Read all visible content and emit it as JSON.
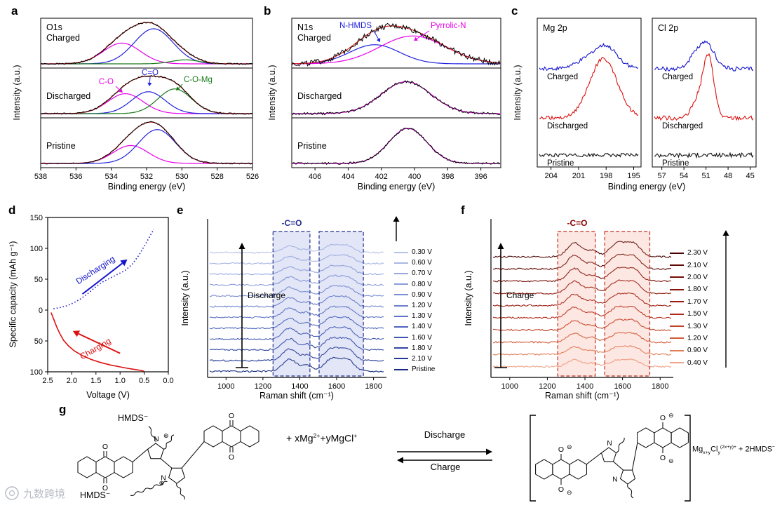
{
  "watermark": {
    "text": "九数跨境"
  },
  "chart_data": {
    "panel_a": {
      "letter": "a",
      "type": "xps-fitted-spectra",
      "core_level": "O1s",
      "xlabel": "Binding energy (eV)",
      "ylabel": "Intensity (a.u.)",
      "x_range": [
        538,
        526
      ],
      "x_ticks": [
        "538",
        "536",
        "534",
        "532",
        "530",
        "528",
        "526"
      ],
      "envelope_color": "#e02020",
      "raw_color": "#000000",
      "component_labels": [
        {
          "text": "C-O",
          "color": "#e800e8"
        },
        {
          "text": "C=O",
          "color": "#2020dd"
        },
        {
          "text": "C-O-Mg",
          "color": "#1a7a1a"
        }
      ],
      "subpanels": [
        {
          "label": "Charged",
          "noise": 0.018,
          "components": [
            {
              "name": "C-O",
              "color": "#e800e8",
              "center": 533.4,
              "width": 1.05,
              "amp": 0.52
            },
            {
              "name": "C=O",
              "color": "#2020dd",
              "center": 531.6,
              "width": 1.1,
              "amp": 0.88
            },
            {
              "name": "C-O-Mg",
              "color": "#1a7a1a",
              "center": 529.8,
              "width": 0.8,
              "amp": 0.1
            }
          ]
        },
        {
          "label": "Discharged",
          "noise": 0.018,
          "components": [
            {
              "name": "C-O",
              "color": "#e800e8",
              "center": 533.2,
              "width": 1.0,
              "amp": 0.5
            },
            {
              "name": "C=O",
              "color": "#2020dd",
              "center": 531.9,
              "width": 0.95,
              "amp": 0.55
            },
            {
              "name": "C-O-Mg",
              "color": "#1a7a1a",
              "center": 530.4,
              "width": 0.95,
              "amp": 0.62
            }
          ]
        },
        {
          "label": "Pristine",
          "noise": 0.016,
          "components": [
            {
              "name": "C-O",
              "color": "#e800e8",
              "center": 532.9,
              "width": 1.0,
              "amp": 0.45
            },
            {
              "name": "C=O",
              "color": "#2020dd",
              "center": 531.4,
              "width": 1.05,
              "amp": 0.85
            }
          ]
        }
      ]
    },
    "panel_b": {
      "letter": "b",
      "type": "xps-fitted-spectra",
      "core_level": "N1s",
      "xlabel": "Binding energy (eV)",
      "ylabel": "Intensity (a.u.)",
      "x_range": [
        407.4,
        394.8
      ],
      "x_ticks": [
        "406",
        "404",
        "402",
        "400",
        "398",
        "396"
      ],
      "envelope_color": "#e02020",
      "annotations": [
        {
          "text": "N-HMDS",
          "color": "#2020dd"
        },
        {
          "text": "Pyrrolic-N",
          "color": "#e800e8"
        }
      ],
      "subpanels": [
        {
          "label": "Charged",
          "noise": 0.07,
          "components": [
            {
              "name": "N-HMDS",
              "color": "#2020dd",
              "center": 402.4,
              "width": 1.5,
              "amp": 0.48
            },
            {
              "name": "Pyrrolic-N",
              "color": "#e800e8",
              "center": 400.1,
              "width": 2.0,
              "amp": 0.7
            }
          ]
        },
        {
          "label": "Discharged",
          "noise": 0.03,
          "components": [
            {
              "name": "Pyrrolic-N",
              "color": "#e800e8",
              "center": 400.5,
              "width": 1.5,
              "amp": 0.8
            }
          ]
        },
        {
          "label": "Pristine",
          "noise": 0.025,
          "components": [
            {
              "name": "Pyrrolic-N",
              "color": "#e800e8",
              "center": 400.4,
              "width": 1.15,
              "amp": 0.88
            }
          ]
        }
      ]
    },
    "panel_c": {
      "letter": "c",
      "type": "xps-stacked-traces",
      "xlabel": "Binding energy (eV)",
      "ylabel": "Intensity (a.u.)",
      "sub_left": {
        "title": "Mg 2p",
        "x_range": [
          205.5,
          194.2
        ],
        "x_ticks": [
          "204",
          "201",
          "198",
          "195"
        ],
        "traces": [
          {
            "label": "Charged",
            "color": "#1515cc",
            "offset": 0.66,
            "noise": 0.012,
            "peaks": [
              {
                "center": 198.9,
                "width": 1.7,
                "amp": 0.1
              },
              {
                "center": 197.8,
                "width": 1.1,
                "amp": 0.07
              }
            ]
          },
          {
            "label": "Discharged",
            "color": "#dd1111",
            "offset": 0.33,
            "noise": 0.012,
            "peaks": [
              {
                "center": 198.3,
                "width": 1.5,
                "amp": 0.4
              }
            ]
          },
          {
            "label": "Pristine",
            "color": "#111111",
            "offset": 0.08,
            "noise": 0.012,
            "peaks": []
          }
        ]
      },
      "sub_right": {
        "title": "Cl 2p",
        "x_range": [
          58.3,
          44.2
        ],
        "x_ticks": [
          "57",
          "54",
          "51",
          "48",
          "45"
        ],
        "traces": [
          {
            "label": "Charged",
            "color": "#1515cc",
            "offset": 0.66,
            "noise": 0.015,
            "peaks": [
              {
                "center": 50.9,
                "width": 1.1,
                "amp": 0.16
              },
              {
                "center": 52.6,
                "width": 0.9,
                "amp": 0.06
              }
            ]
          },
          {
            "label": "Discharged",
            "color": "#dd1111",
            "offset": 0.33,
            "noise": 0.015,
            "peaks": [
              {
                "center": 50.7,
                "width": 0.75,
                "amp": 0.42
              },
              {
                "center": 52.3,
                "width": 0.7,
                "amp": 0.1
              }
            ]
          },
          {
            "label": "Pristine",
            "color": "#111111",
            "offset": 0.08,
            "noise": 0.015,
            "peaks": []
          }
        ]
      }
    },
    "panel_d": {
      "letter": "d",
      "type": "line",
      "xlabel": "Voltage (V)",
      "ylabel": "Specific capacity (mAh g⁻¹)",
      "x_range": [
        2.5,
        0.0
      ],
      "y_range": [
        -100,
        150
      ],
      "x_ticks": [
        "2.5",
        "2.0",
        "1.5",
        "1.0",
        "0.5",
        "0.0"
      ],
      "y_ticks": [
        "150",
        "100",
        "50",
        "0",
        "50",
        "100"
      ],
      "y_tick_values": [
        150,
        100,
        50,
        0,
        -50,
        -100
      ],
      "series": [
        {
          "name": "Discharging",
          "color": "#1515cc",
          "style": "dotted",
          "points": [
            [
              2.38,
              2
            ],
            [
              2.25,
              4
            ],
            [
              2.1,
              7
            ],
            [
              1.95,
              12
            ],
            [
              1.8,
              19
            ],
            [
              1.65,
              28
            ],
            [
              1.5,
              38
            ],
            [
              1.35,
              46
            ],
            [
              1.2,
              52
            ],
            [
              1.05,
              58
            ],
            [
              0.9,
              64
            ],
            [
              0.75,
              74
            ],
            [
              0.6,
              90
            ],
            [
              0.48,
              106
            ],
            [
              0.38,
              120
            ],
            [
              0.3,
              131
            ]
          ]
        },
        {
          "name": "Charging",
          "color": "#dd1111",
          "style": "solid",
          "points": [
            [
              2.43,
              -4
            ],
            [
              2.38,
              -14
            ],
            [
              2.32,
              -26
            ],
            [
              2.25,
              -38
            ],
            [
              2.17,
              -49
            ],
            [
              2.07,
              -58
            ],
            [
              1.95,
              -66
            ],
            [
              1.8,
              -73
            ],
            [
              1.6,
              -80
            ],
            [
              1.4,
              -85
            ],
            [
              1.2,
              -89
            ],
            [
              1.0,
              -92
            ],
            [
              0.8,
              -95
            ],
            [
              0.62,
              -97
            ],
            [
              0.5,
              -99
            ]
          ]
        }
      ]
    },
    "panel_e": {
      "letter": "e",
      "type": "raman-waterfall",
      "xlabel": "Raman shift (cm⁻¹)",
      "ylabel": "Intensity (a.u.)",
      "x_range": [
        900,
        1870
      ],
      "x_ticks": [
        "1000",
        "1200",
        "1400",
        "1600",
        "1800"
      ],
      "band_label": "-C=O",
      "band_color": "#24318f",
      "arrow_label": "Discharge",
      "highlight_color": "#24318f",
      "highlight_fill": "#7b8fd4",
      "highlight_regions": [
        [
          1255,
          1455
        ],
        [
          1505,
          1745
        ]
      ],
      "peak_centers": [
        1345,
        1440,
        1575,
        1660
      ],
      "peak_widths": [
        38,
        28,
        42,
        36
      ],
      "curves": [
        {
          "label": "0.30 V",
          "color": "#b6c2ea",
          "amps": [
            0.32,
            0.15,
            0.35,
            0.3
          ]
        },
        {
          "label": "0.60 V",
          "color": "#a8b6e4",
          "amps": [
            0.34,
            0.16,
            0.37,
            0.32
          ]
        },
        {
          "label": "0.70 V",
          "color": "#99a9df",
          "amps": [
            0.36,
            0.17,
            0.39,
            0.34
          ]
        },
        {
          "label": "0.80 V",
          "color": "#8a9cd9",
          "amps": [
            0.38,
            0.18,
            0.41,
            0.36
          ]
        },
        {
          "label": "0.90 V",
          "color": "#7b8fd3",
          "amps": [
            0.4,
            0.19,
            0.43,
            0.38
          ]
        },
        {
          "label": "1.20 V",
          "color": "#6c81cc",
          "amps": [
            0.43,
            0.2,
            0.46,
            0.4
          ]
        },
        {
          "label": "1.30 V",
          "color": "#5d73c4",
          "amps": [
            0.45,
            0.21,
            0.48,
            0.42
          ]
        },
        {
          "label": "1.40 V",
          "color": "#4e65bb",
          "amps": [
            0.47,
            0.22,
            0.5,
            0.44
          ]
        },
        {
          "label": "1.60 V",
          "color": "#3f56b1",
          "amps": [
            0.5,
            0.23,
            0.53,
            0.46
          ]
        },
        {
          "label": "1.80 V",
          "color": "#3047a4",
          "amps": [
            0.52,
            0.24,
            0.55,
            0.48
          ]
        },
        {
          "label": "2.10 V",
          "color": "#223894",
          "amps": [
            0.55,
            0.25,
            0.58,
            0.5
          ]
        },
        {
          "label": "Pristine",
          "color": "#132a7e",
          "amps": [
            0.58,
            0.26,
            0.6,
            0.52
          ]
        }
      ]
    },
    "panel_f": {
      "letter": "f",
      "type": "raman-waterfall",
      "xlabel": "Raman shift (cm⁻¹)",
      "ylabel": "Intensity (a.u.)",
      "x_range": [
        900,
        1870
      ],
      "x_ticks": [
        "1000",
        "1200",
        "1400",
        "1600",
        "1800"
      ],
      "band_label": "-C=O",
      "band_color": "#8b0000",
      "arrow_label": "Charge",
      "highlight_color": "#c03020",
      "highlight_fill": "#f4907a",
      "highlight_regions": [
        [
          1255,
          1455
        ],
        [
          1505,
          1745
        ]
      ],
      "peak_centers": [
        1345,
        1440,
        1575,
        1660
      ],
      "peak_widths": [
        38,
        28,
        42,
        36
      ],
      "curves": [
        {
          "label": "2.30 V",
          "color": "#4a0200",
          "amps": [
            0.62,
            0.26,
            0.62,
            0.55
          ]
        },
        {
          "label": "2.10 V",
          "color": "#600703",
          "amps": [
            0.6,
            0.25,
            0.6,
            0.53
          ]
        },
        {
          "label": "2.00 V",
          "color": "#750d06",
          "amps": [
            0.57,
            0.24,
            0.57,
            0.5
          ]
        },
        {
          "label": "1.80 V",
          "color": "#89140a",
          "amps": [
            0.54,
            0.23,
            0.54,
            0.47
          ]
        },
        {
          "label": "1.70 V",
          "color": "#9d1c10",
          "amps": [
            0.51,
            0.22,
            0.51,
            0.44
          ]
        },
        {
          "label": "1.50 V",
          "color": "#b02a18",
          "amps": [
            0.47,
            0.21,
            0.47,
            0.41
          ]
        },
        {
          "label": "1.30 V",
          "color": "#c13f24",
          "amps": [
            0.43,
            0.2,
            0.43,
            0.38
          ]
        },
        {
          "label": "1.20 V",
          "color": "#d15a38",
          "amps": [
            0.39,
            0.19,
            0.39,
            0.35
          ]
        },
        {
          "label": "0.90 V",
          "color": "#e07d55",
          "amps": [
            0.34,
            0.17,
            0.34,
            0.31
          ]
        },
        {
          "label": "0.40 V",
          "color": "#eda488",
          "amps": [
            0.3,
            0.15,
            0.3,
            0.27
          ]
        }
      ]
    },
    "panel_g": {
      "letter": "g",
      "type": "reaction-scheme",
      "hmds_top": "HMDS⁻",
      "hmds_bottom": "HMDS⁻",
      "reagent_pre": "+ xMg",
      "reagent_sup1": "2+",
      "reagent_mid": "+yMgCl",
      "reagent_sup2": "+",
      "forward_label": "Discharge",
      "reverse_label": "Charge",
      "product_base1": "Mg",
      "product_sub1": "x+y",
      "product_base2": "Cl",
      "product_sub2": "y",
      "product_sup": "(2x+y)+",
      "product_tail": " + 2HMDS",
      "product_tail_sup": "−",
      "atoms": {
        "o": "O",
        "n": "N",
        "o_minus": "⊖",
        "n_plus": "⊕"
      }
    }
  }
}
